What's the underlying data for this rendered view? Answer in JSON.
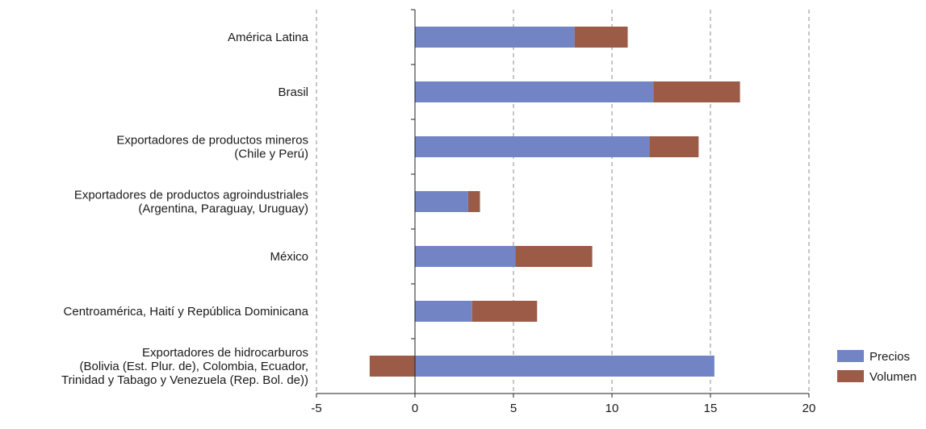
{
  "chart_data": {
    "type": "bar",
    "orientation": "horizontal",
    "stacked": true,
    "categories": [
      [
        "América Latina"
      ],
      [
        "Brasil"
      ],
      [
        "Exportadores de productos mineros",
        "(Chile y Perú)"
      ],
      [
        "Exportadores de productos agroindustriales",
        "(Argentina, Paraguay, Uruguay)"
      ],
      [
        "México"
      ],
      [
        "Centroamérica, Haití y República Dominicana"
      ],
      [
        "Exportadores de hidrocarburos",
        "(Bolivia (Est. Plur. de), Colombia, Ecuador,",
        "Trinidad y Tabago y Venezuela (Rep. Bol. de))"
      ]
    ],
    "series": [
      {
        "name": "Precios",
        "color": "#7284c4",
        "values": [
          8.1,
          12.1,
          11.9,
          2.7,
          5.1,
          2.9,
          15.2
        ]
      },
      {
        "name": "Volumen",
        "color": "#9b5b47",
        "values": [
          2.7,
          4.4,
          2.5,
          0.6,
          3.9,
          3.3,
          -2.3
        ]
      }
    ],
    "xlim": [
      -5,
      20
    ],
    "xticks": [
      -5,
      0,
      5,
      10,
      15,
      20
    ],
    "xtick_labels": [
      "-5",
      "0",
      "5",
      "10",
      "15",
      "20"
    ],
    "grid": "vertical-dashed",
    "legend_position": "bottom-right",
    "title": "",
    "xlabel": "",
    "ylabel": ""
  }
}
